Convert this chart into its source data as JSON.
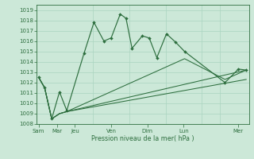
{
  "xlabel": "Pression niveau de la mer( hPa )",
  "ylim": [
    1008,
    1019.5
  ],
  "yticks": [
    1008,
    1009,
    1010,
    1011,
    1012,
    1013,
    1014,
    1015,
    1016,
    1017,
    1018,
    1019
  ],
  "background_color": "#cce8d8",
  "grid_color": "#aad4c0",
  "line_color": "#2d6e3e",
  "major_tick_positions": [
    0,
    1,
    2,
    4,
    6,
    8,
    11
  ],
  "major_tick_labels": [
    "Sam",
    "Mar",
    "Jeu",
    "Ven",
    "Dim",
    "Lun",
    "Mer"
  ],
  "xmin": -0.1,
  "xmax": 11.6,
  "line1_x": [
    0,
    0.33,
    0.72,
    1.15,
    1.55,
    2.5,
    3.05,
    3.6,
    4.0,
    4.5,
    4.82,
    5.15,
    5.72,
    6.1,
    6.52,
    7.05,
    7.55,
    8.05,
    10.28,
    11.02,
    11.45
  ],
  "line1_y": [
    1012.5,
    1011.5,
    1008.5,
    1011.1,
    1009.3,
    1014.8,
    1017.8,
    1016.0,
    1016.3,
    1018.6,
    1018.2,
    1015.3,
    1016.5,
    1016.3,
    1014.4,
    1016.7,
    1015.9,
    1015.0,
    1012.0,
    1013.3,
    1013.2
  ],
  "line2_x": [
    0,
    0.33,
    0.72,
    1.15,
    1.55,
    11.45
  ],
  "line2_y": [
    1012.5,
    1011.5,
    1008.5,
    1009.0,
    1009.2,
    1013.2
  ],
  "line3_x": [
    0,
    0.33,
    0.72,
    1.15,
    1.55,
    11.45
  ],
  "line3_y": [
    1012.5,
    1011.5,
    1008.5,
    1009.0,
    1009.2,
    1012.3
  ],
  "line4_x": [
    0,
    0.33,
    0.72,
    1.15,
    1.55,
    8.05,
    10.28,
    11.45
  ],
  "line4_y": [
    1012.5,
    1011.5,
    1008.5,
    1009.0,
    1009.2,
    1014.3,
    1012.3,
    1013.2
  ]
}
